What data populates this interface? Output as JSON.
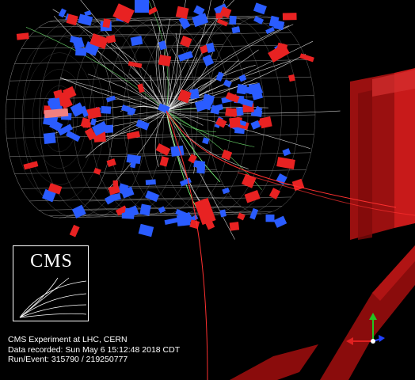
{
  "logo": {
    "text": "CMS"
  },
  "caption": {
    "line1": "CMS Experiment at LHC, CERN",
    "line2": "Data recorded: Sun May  6 15:12:48 2018 CDT",
    "line3": "Run/Event: 315790 / 219250777"
  },
  "colors": {
    "background": "#000000",
    "hcal": "#ff2a2a",
    "ecal": "#2a5cff",
    "grid": "#ffffff",
    "muon_chamber": "#a01010",
    "axis_y": "#22c422",
    "axis_x": "#e02020",
    "axis_z": "#2040ff"
  }
}
